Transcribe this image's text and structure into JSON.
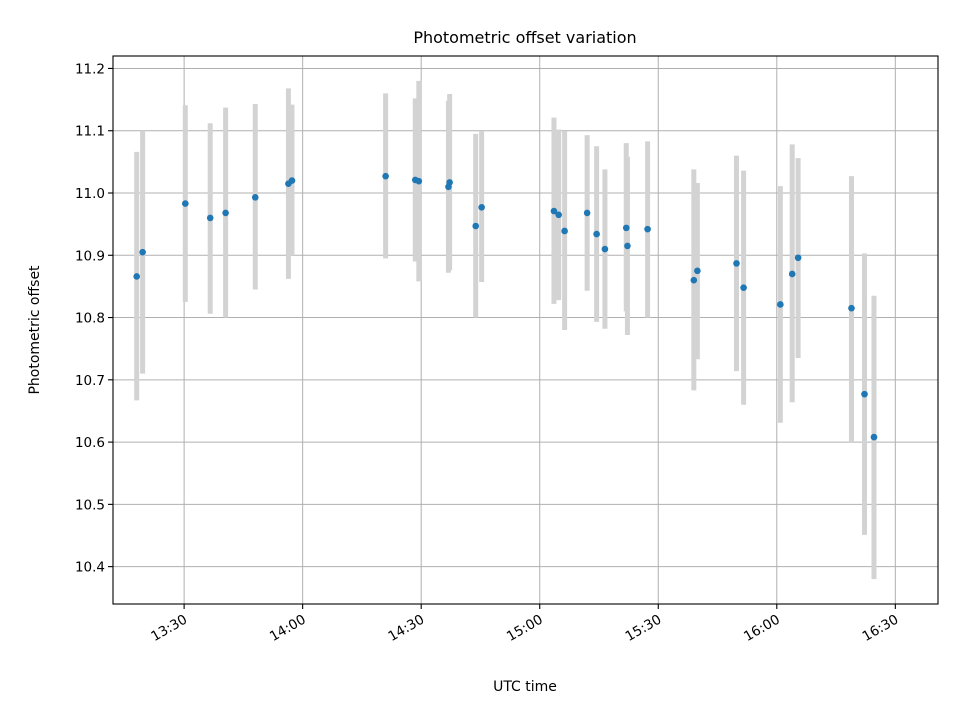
{
  "chart_data": {
    "type": "scatter",
    "title": "Photometric offset variation",
    "xlabel": "UTC time",
    "ylabel": "Photometric offset",
    "xlim_minutes": [
      13.2,
      16.68
    ],
    "ylim": [
      10.34,
      11.22
    ],
    "grid": true,
    "x_ticks": [
      {
        "value": 13.5,
        "label": "13:30"
      },
      {
        "value": 14.0,
        "label": "14:00"
      },
      {
        "value": 14.5,
        "label": "14:30"
      },
      {
        "value": 15.0,
        "label": "15:00"
      },
      {
        "value": 15.5,
        "label": "15:30"
      },
      {
        "value": 16.0,
        "label": "16:00"
      },
      {
        "value": 16.5,
        "label": "16:30"
      }
    ],
    "y_ticks": [
      {
        "value": 10.4,
        "label": "10.4"
      },
      {
        "value": 10.5,
        "label": "10.5"
      },
      {
        "value": 10.6,
        "label": "10.6"
      },
      {
        "value": 10.7,
        "label": "10.7"
      },
      {
        "value": 10.8,
        "label": "10.8"
      },
      {
        "value": 10.9,
        "label": "10.9"
      },
      {
        "value": 11.0,
        "label": "11.0"
      },
      {
        "value": 11.1,
        "label": "11.1"
      },
      {
        "value": 11.2,
        "label": "11.2"
      }
    ],
    "x_unit": "hours (UTC)",
    "points": [
      {
        "x": 13.3,
        "y": 10.866,
        "lo": 10.667,
        "hi": 11.066
      },
      {
        "x": 13.325,
        "y": 10.905,
        "lo": 10.71,
        "hi": 11.1
      },
      {
        "x": 13.505,
        "y": 10.983,
        "lo": 10.825,
        "hi": 11.141
      },
      {
        "x": 13.61,
        "y": 10.96,
        "lo": 10.806,
        "hi": 11.112
      },
      {
        "x": 13.675,
        "y": 10.968,
        "lo": 10.8,
        "hi": 11.137
      },
      {
        "x": 13.8,
        "y": 10.993,
        "lo": 10.845,
        "hi": 11.143
      },
      {
        "x": 13.94,
        "y": 11.015,
        "lo": 10.862,
        "hi": 11.168
      },
      {
        "x": 13.955,
        "y": 11.02,
        "lo": 10.9,
        "hi": 11.142
      },
      {
        "x": 14.35,
        "y": 11.027,
        "lo": 10.895,
        "hi": 11.16
      },
      {
        "x": 14.475,
        "y": 11.021,
        "lo": 10.89,
        "hi": 11.152
      },
      {
        "x": 14.49,
        "y": 11.019,
        "lo": 10.858,
        "hi": 11.18
      },
      {
        "x": 14.615,
        "y": 11.01,
        "lo": 10.872,
        "hi": 11.148
      },
      {
        "x": 14.62,
        "y": 11.017,
        "lo": 10.876,
        "hi": 11.159
      },
      {
        "x": 14.73,
        "y": 10.947,
        "lo": 10.8,
        "hi": 11.095
      },
      {
        "x": 14.755,
        "y": 10.977,
        "lo": 10.857,
        "hi": 11.099
      },
      {
        "x": 15.06,
        "y": 10.971,
        "lo": 10.822,
        "hi": 11.121
      },
      {
        "x": 15.08,
        "y": 10.965,
        "lo": 10.828,
        "hi": 11.102
      },
      {
        "x": 15.105,
        "y": 10.939,
        "lo": 10.78,
        "hi": 11.099
      },
      {
        "x": 15.2,
        "y": 10.968,
        "lo": 10.843,
        "hi": 11.093
      },
      {
        "x": 15.24,
        "y": 10.934,
        "lo": 10.793,
        "hi": 11.075
      },
      {
        "x": 15.275,
        "y": 10.91,
        "lo": 10.782,
        "hi": 11.038
      },
      {
        "x": 15.365,
        "y": 10.944,
        "lo": 10.81,
        "hi": 11.08
      },
      {
        "x": 15.37,
        "y": 10.915,
        "lo": 10.772,
        "hi": 11.058
      },
      {
        "x": 15.455,
        "y": 10.942,
        "lo": 10.8,
        "hi": 11.083
      },
      {
        "x": 15.65,
        "y": 10.86,
        "lo": 10.683,
        "hi": 11.038
      },
      {
        "x": 15.665,
        "y": 10.875,
        "lo": 10.733,
        "hi": 11.016
      },
      {
        "x": 15.83,
        "y": 10.887,
        "lo": 10.714,
        "hi": 11.06
      },
      {
        "x": 15.86,
        "y": 10.848,
        "lo": 10.66,
        "hi": 11.036
      },
      {
        "x": 16.015,
        "y": 10.821,
        "lo": 10.631,
        "hi": 11.011
      },
      {
        "x": 16.065,
        "y": 10.87,
        "lo": 10.664,
        "hi": 11.078
      },
      {
        "x": 16.09,
        "y": 10.896,
        "lo": 10.735,
        "hi": 11.056
      },
      {
        "x": 16.315,
        "y": 10.815,
        "lo": 10.6,
        "hi": 11.027
      },
      {
        "x": 16.37,
        "y": 10.677,
        "lo": 10.451,
        "hi": 10.903
      },
      {
        "x": 16.41,
        "y": 10.608,
        "lo": 10.38,
        "hi": 10.835
      }
    ]
  }
}
